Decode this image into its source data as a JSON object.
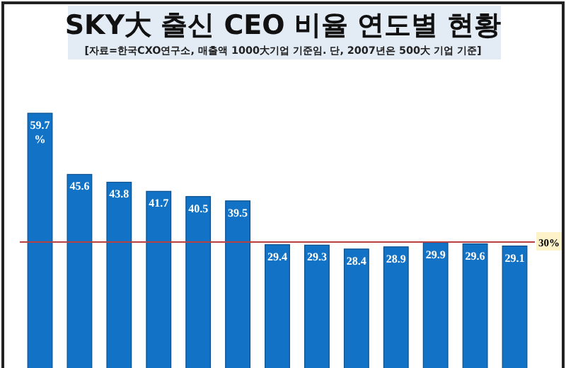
{
  "chart_data": {
    "type": "bar",
    "title": "SKY大 출신 CEO 비율 연도별 현황",
    "subtitle": "[자료=한국CXO연구소, 매출액 1000大기업  기준임. 단, 2007년은 500大 기업 기준]",
    "categories": [
      null,
      null,
      null,
      null,
      null,
      null,
      null,
      null,
      null,
      null,
      null,
      null,
      null
    ],
    "values": [
      59.7,
      45.6,
      43.8,
      41.7,
      40.5,
      39.5,
      29.4,
      29.3,
      28.4,
      28.9,
      29.9,
      29.6,
      29.1
    ],
    "value_labels": [
      "59.7%",
      "45.6",
      "43.8",
      "41.7",
      "40.5",
      "39.5",
      "29.4",
      "29.3",
      "28.4",
      "28.9",
      "29.9",
      "29.6",
      "29.1"
    ],
    "color": "#1273c6",
    "ref_lines": [
      {
        "axis": "y",
        "value": 30,
        "label": "30%",
        "color": "#b84040"
      }
    ]
  }
}
